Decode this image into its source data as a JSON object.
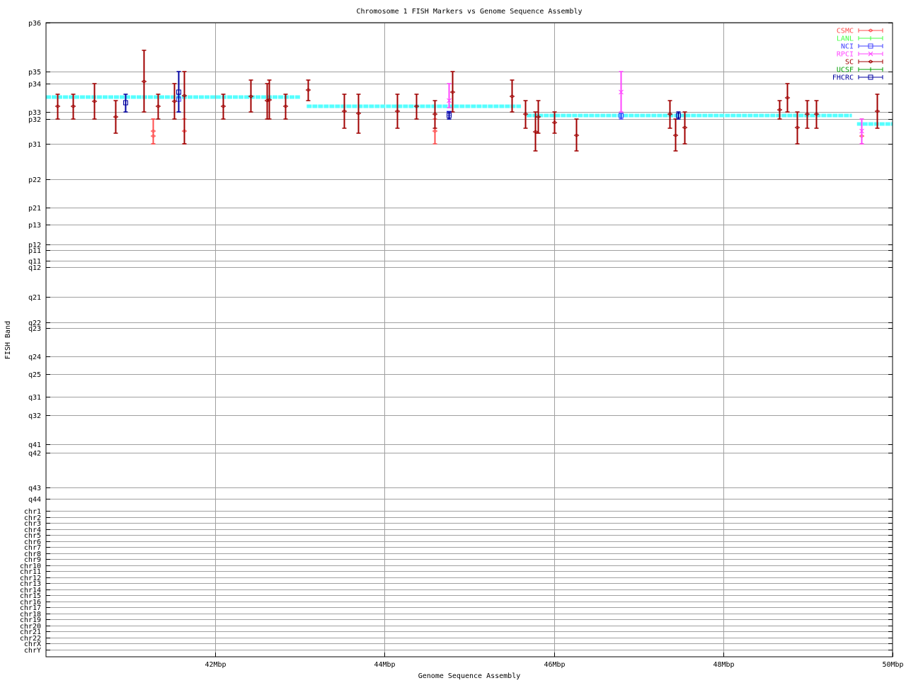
{
  "chart_data": {
    "type": "scatter",
    "title": "Chromosome 1 FISH Markers vs Genome Sequence Assembly",
    "xlabel": "Genome Sequence Assembly",
    "ylabel": "FISH Band",
    "xlim": [
      40,
      50
    ],
    "ylim": [
      0,
      895
    ],
    "grid": true,
    "legend_placement": "top-right",
    "x_ticks": [
      {
        "value": 42,
        "label": "42Mbp"
      },
      {
        "value": 44,
        "label": "44Mbp"
      },
      {
        "value": 46,
        "label": "46Mbp"
      },
      {
        "value": 48,
        "label": "48Mbp"
      },
      {
        "value": 50,
        "label": "50Mbp"
      }
    ],
    "y_ticks": [
      {
        "value": 0,
        "label": "p36"
      },
      {
        "value": 69,
        "label": "p35"
      },
      {
        "value": 86,
        "label": "p34"
      },
      {
        "value": 126,
        "label": "p33"
      },
      {
        "value": 136,
        "label": "p32"
      },
      {
        "value": 171,
        "label": "p31"
      },
      {
        "value": 221,
        "label": "p22"
      },
      {
        "value": 261,
        "label": "p21"
      },
      {
        "value": 285,
        "label": "p13"
      },
      {
        "value": 313,
        "label": "p12"
      },
      {
        "value": 321,
        "label": "p11"
      },
      {
        "value": 336,
        "label": "q11"
      },
      {
        "value": 345,
        "label": "q12"
      },
      {
        "value": 387,
        "label": "q21"
      },
      {
        "value": 423,
        "label": "q22"
      },
      {
        "value": 431,
        "label": "q23"
      },
      {
        "value": 471,
        "label": "q24"
      },
      {
        "value": 496,
        "label": "q25"
      },
      {
        "value": 528,
        "label": "q31"
      },
      {
        "value": 554,
        "label": "q32"
      },
      {
        "value": 595,
        "label": "q41"
      },
      {
        "value": 607,
        "label": "q42"
      },
      {
        "value": 656,
        "label": "q43"
      },
      {
        "value": 672,
        "label": "q44"
      },
      {
        "value": 689,
        "label": "chr1"
      },
      {
        "value": 697.5,
        "label": "chr2"
      },
      {
        "value": 706,
        "label": "chr3"
      },
      {
        "value": 714.6,
        "label": "chr4"
      },
      {
        "value": 723.1,
        "label": "chr5"
      },
      {
        "value": 731.6,
        "label": "chr6"
      },
      {
        "value": 740.1,
        "label": "chr7"
      },
      {
        "value": 748.6,
        "label": "chr8"
      },
      {
        "value": 757.2,
        "label": "chr9"
      },
      {
        "value": 765.7,
        "label": "chr10"
      },
      {
        "value": 774.2,
        "label": "chr11"
      },
      {
        "value": 782.7,
        "label": "chr12"
      },
      {
        "value": 791.2,
        "label": "chr13"
      },
      {
        "value": 799.8,
        "label": "chr14"
      },
      {
        "value": 808.3,
        "label": "chr15"
      },
      {
        "value": 816.8,
        "label": "chr16"
      },
      {
        "value": 825.3,
        "label": "chr17"
      },
      {
        "value": 833.8,
        "label": "chr18"
      },
      {
        "value": 842.4,
        "label": "chr19"
      },
      {
        "value": 850.9,
        "label": "chr20"
      },
      {
        "value": 859.4,
        "label": "chr21"
      },
      {
        "value": 867.9,
        "label": "chr22"
      },
      {
        "value": 876.4,
        "label": "chrX"
      },
      {
        "value": 885,
        "label": "chrY"
      }
    ],
    "assembly_segments": {
      "color": "#55ffff",
      "segments": [
        [
          40.0,
          43.0,
          105
        ],
        [
          43.08,
          45.61,
          118
        ],
        [
          45.68,
          49.52,
          131
        ],
        [
          49.58,
          50.0,
          143
        ]
      ]
    },
    "series": [
      {
        "name": "CSMC",
        "color": "#ff4d4d",
        "marker": "diamond",
        "points": [
          [
            41.26,
            153,
            136,
            171
          ],
          [
            41.26,
            160,
            136,
            171
          ],
          [
            41.63,
            153,
            136,
            171
          ],
          [
            44.59,
            153,
            136,
            171
          ],
          [
            49.63,
            160,
            136,
            171
          ]
        ]
      },
      {
        "name": "LANL",
        "color": "#44ff44",
        "marker": "tick",
        "points": []
      },
      {
        "name": "NCI",
        "color": "#4040ff",
        "marker": "square-tick",
        "points": [
          [
            41.56,
            108,
            101,
            126
          ],
          [
            44.76,
            128,
            126,
            136
          ],
          [
            46.79,
            131,
            128,
            136
          ]
        ]
      },
      {
        "name": "RPCI",
        "color": "#ff44ff",
        "marker": "x",
        "points": [
          [
            44.76,
            110,
            86,
            120
          ],
          [
            46.79,
            98,
            69,
            126
          ],
          [
            49.63,
            153,
            136,
            171
          ]
        ]
      },
      {
        "name": "SC",
        "color": "#a00000",
        "marker": "diamond",
        "points": [
          [
            40.13,
            118,
            101,
            136
          ],
          [
            40.32,
            118,
            101,
            136
          ],
          [
            40.57,
            111,
            86,
            136
          ],
          [
            40.82,
            133,
            110,
            156
          ],
          [
            41.15,
            83,
            39,
            126
          ],
          [
            41.32,
            118,
            101,
            136
          ],
          [
            41.51,
            111,
            86,
            136
          ],
          [
            41.63,
            103,
            69,
            171
          ],
          [
            42.09,
            118,
            101,
            136
          ],
          [
            42.42,
            104,
            81,
            126
          ],
          [
            42.61,
            110,
            86,
            136
          ],
          [
            42.63,
            109,
            81,
            136
          ],
          [
            42.83,
            118,
            101,
            136
          ],
          [
            43.09,
            95,
            81,
            110
          ],
          [
            43.52,
            125,
            101,
            149
          ],
          [
            43.69,
            128,
            101,
            156
          ],
          [
            44.15,
            125,
            101,
            149
          ],
          [
            44.37,
            118,
            101,
            136
          ],
          [
            44.59,
            129,
            110,
            149
          ],
          [
            44.8,
            98,
            69,
            126
          ],
          [
            45.5,
            104,
            81,
            126
          ],
          [
            45.66,
            129,
            110,
            149
          ],
          [
            45.78,
            154,
            126,
            181
          ],
          [
            45.81,
            133,
            110,
            156
          ],
          [
            46.0,
            141,
            126,
            156
          ],
          [
            46.26,
            159,
            136,
            181
          ],
          [
            47.37,
            129,
            110,
            149
          ],
          [
            47.43,
            159,
            136,
            181
          ],
          [
            47.54,
            148,
            126,
            171
          ],
          [
            48.66,
            123,
            110,
            136
          ],
          [
            48.75,
            106,
            86,
            126
          ],
          [
            48.87,
            148,
            126,
            171
          ],
          [
            48.99,
            129,
            110,
            149
          ],
          [
            49.1,
            129,
            110,
            149
          ],
          [
            49.82,
            125,
            101,
            149
          ]
        ]
      },
      {
        "name": "UCSF",
        "color": "#00a000",
        "marker": "tick",
        "points": []
      },
      {
        "name": "FHCRC",
        "color": "#0000a0",
        "marker": "square",
        "points": [
          [
            40.94,
            113,
            101,
            126
          ],
          [
            41.56,
            98,
            69,
            126
          ],
          [
            44.76,
            131,
            126,
            136
          ],
          [
            47.47,
            131,
            126,
            136
          ]
        ]
      }
    ]
  }
}
